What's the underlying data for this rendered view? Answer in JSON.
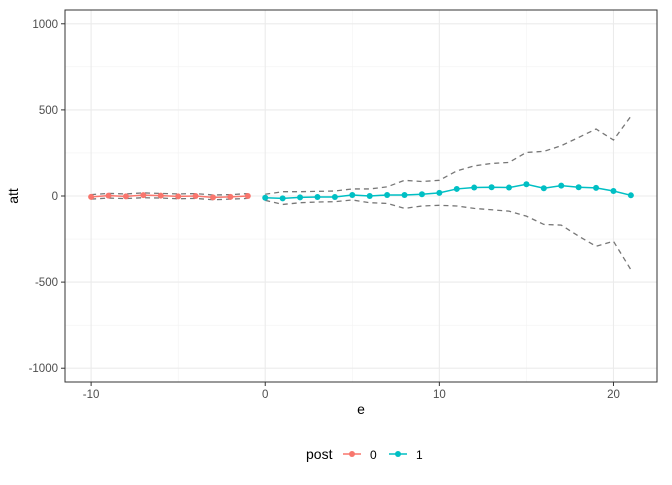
{
  "chart_data": {
    "type": "line",
    "title": "",
    "xlabel": "e",
    "ylabel": "att",
    "xlim": [
      -11.5,
      22.5
    ],
    "ylim": [
      -1080,
      1080
    ],
    "x_ticks": [
      -10,
      0,
      10,
      20
    ],
    "y_ticks": [
      -1000,
      -500,
      0,
      500,
      1000
    ],
    "x_tick_labels": [
      "-10",
      "0",
      "10",
      "20"
    ],
    "y_tick_labels": [
      "-1000",
      "-500",
      "0",
      "500",
      "1000"
    ],
    "grid": true,
    "legend": {
      "title": "post",
      "placement": "bottom",
      "entries": [
        "0",
        "1"
      ]
    },
    "colors": {
      "0": "#F8766D",
      "1": "#00BFC4",
      "ci": "#777777"
    },
    "series": [
      {
        "name": "0",
        "x": [
          -10,
          -9,
          -8,
          -7,
          -6,
          -5,
          -4,
          -3,
          -2,
          -1
        ],
        "y": [
          -5,
          2,
          -2,
          5,
          2,
          -2,
          0,
          -8,
          -5,
          0
        ],
        "lower": [
          -18,
          -12,
          -15,
          -10,
          -12,
          -16,
          -14,
          -22,
          -18,
          -14
        ],
        "upper": [
          8,
          15,
          12,
          18,
          15,
          12,
          14,
          6,
          8,
          14
        ]
      },
      {
        "name": "1",
        "x": [
          0,
          1,
          2,
          3,
          4,
          5,
          6,
          7,
          8,
          9,
          10,
          11,
          12,
          13,
          14,
          15,
          16,
          17,
          18,
          19,
          20,
          21
        ],
        "y": [
          -10,
          -14,
          -8,
          -6,
          -6,
          6,
          0,
          6,
          6,
          10,
          18,
          41,
          49,
          51,
          49,
          68,
          45,
          60,
          51,
          47,
          29,
          4
        ],
        "lower": [
          -25,
          -49,
          -39,
          -35,
          -33,
          -23,
          -39,
          -43,
          -72,
          -58,
          -54,
          -58,
          -72,
          -80,
          -88,
          -117,
          -165,
          -169,
          -233,
          -292,
          -263,
          -428
        ],
        "upper": [
          10,
          25,
          25,
          27,
          29,
          41,
          41,
          53,
          91,
          84,
          91,
          146,
          175,
          189,
          195,
          253,
          259,
          292,
          340,
          389,
          325,
          463
        ]
      }
    ]
  }
}
